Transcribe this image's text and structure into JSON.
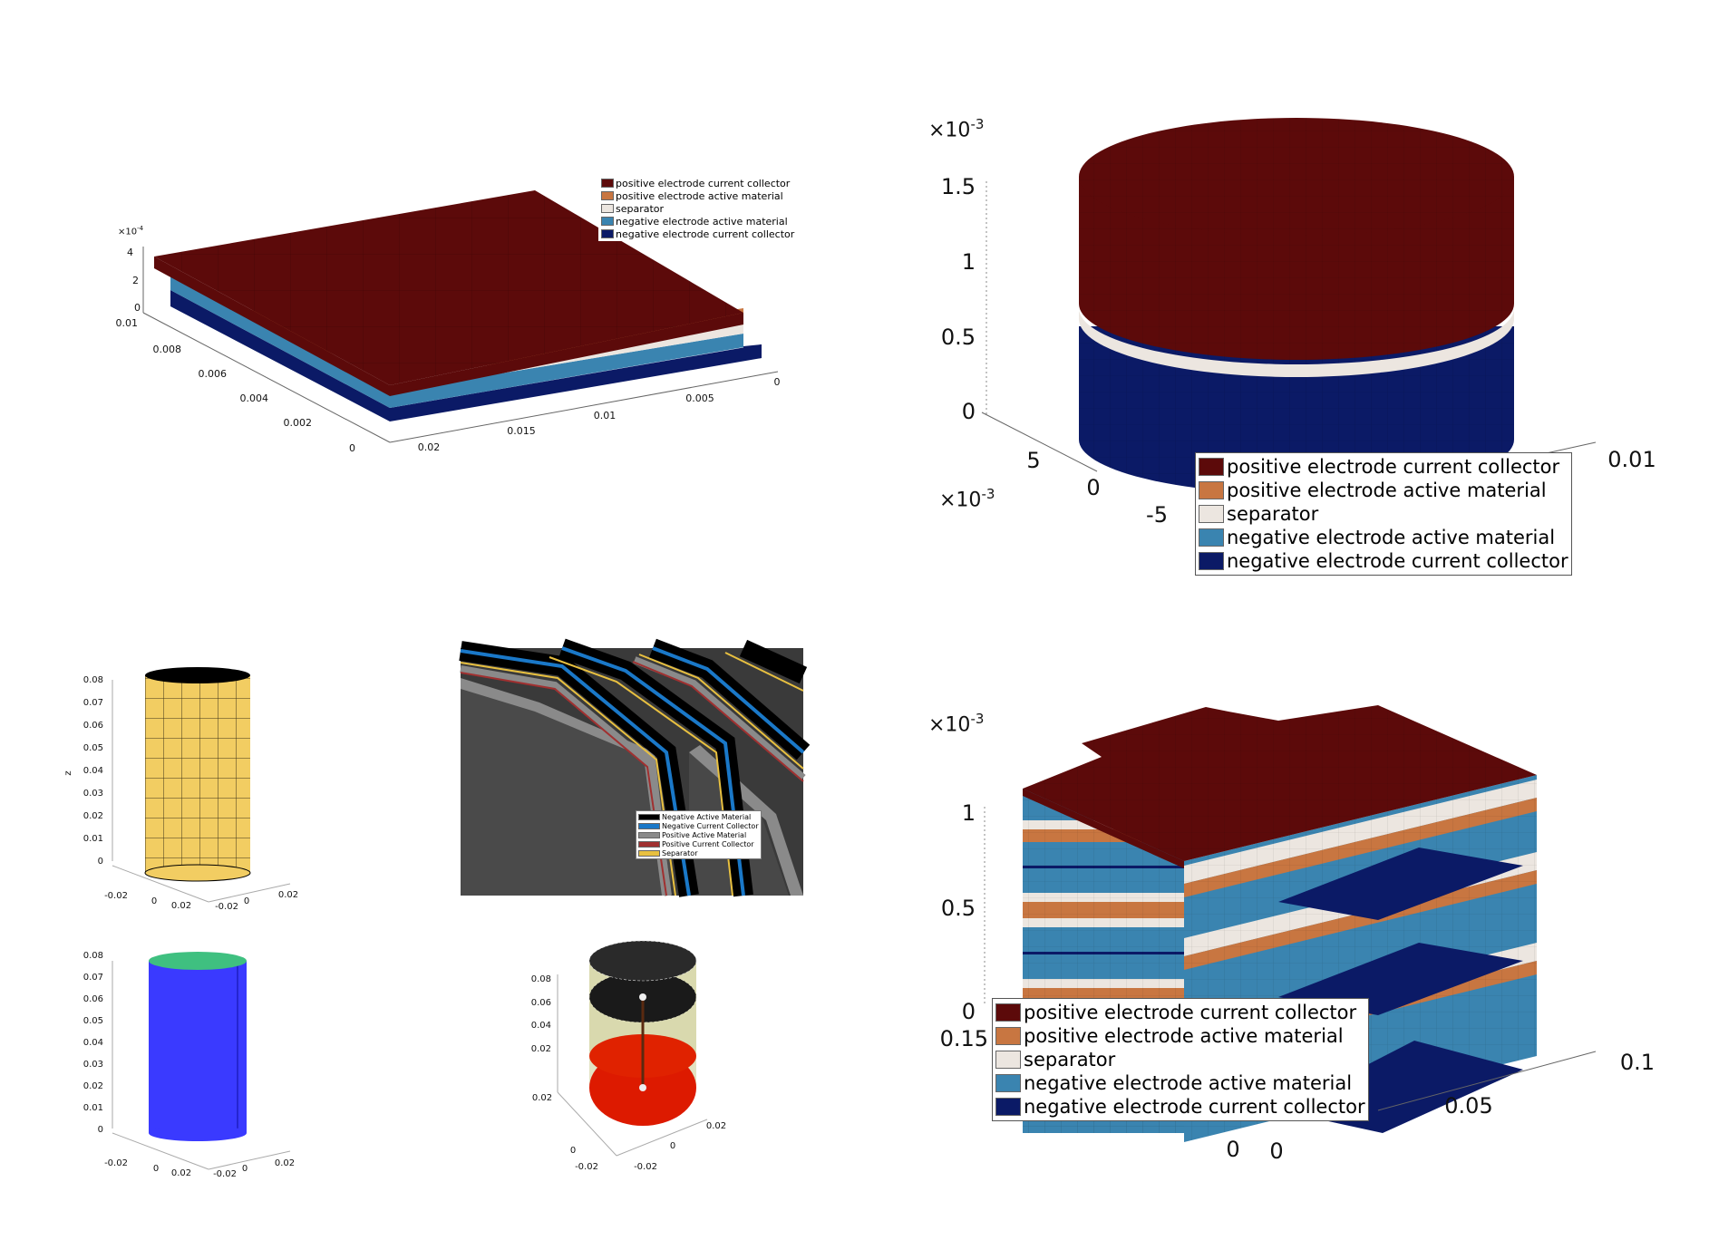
{
  "colors": {
    "pos_cc": "#5c0a0a",
    "pos_am": "#c87641",
    "separator": "#ece6e0",
    "neg_am": "#3a84b0",
    "neg_cc": "#0b1a66",
    "roll_neg_am": "#000000",
    "roll_neg_cc": "#1a78c8",
    "roll_pos_am": "#8a8a8a",
    "roll_pos_cc": "#a03030",
    "roll_separator": "#e8c040",
    "cyl_yellow": "#f2cd62",
    "cyl_blue": "#3a3aff",
    "cyl_green": "#3fc080",
    "cyl_red": "#dd1a00"
  },
  "legend_main": [
    {
      "label": "positive electrode current collector",
      "color": "#5c0a0a"
    },
    {
      "label": "positive electrode active material",
      "color": "#c87641"
    },
    {
      "label": "separator",
      "color": "#ece6e0"
    },
    {
      "label": "negative electrode active material",
      "color": "#3a84b0"
    },
    {
      "label": "negative electrode current collector",
      "color": "#0b1a66"
    }
  ],
  "legend_roll": [
    {
      "label": "Negative Active Material",
      "color": "#000000"
    },
    {
      "label": "Negative Current Collector",
      "color": "#1a78c8"
    },
    {
      "label": "Positive Active Material",
      "color": "#8a8a8a"
    },
    {
      "label": "Positive Current Collector",
      "color": "#a03030"
    },
    {
      "label": "Separator",
      "color": "#e8c040"
    }
  ],
  "panel_a": {
    "multiplier": "×10",
    "exponent": "-4",
    "z_ticks": [
      "4",
      "2",
      "0"
    ],
    "y_ticks": [
      "0.01",
      "0.008",
      "0.006",
      "0.004",
      "0.002",
      "0"
    ],
    "x_ticks": [
      "0.02",
      "0.015",
      "0.01",
      "0.005",
      "0"
    ]
  },
  "panel_b": {
    "z_multiplier": "×10",
    "z_exponent": "-3",
    "z_ticks": [
      "1.5",
      "1",
      "0.5",
      "0"
    ],
    "y_multiplier": "×10",
    "y_exponent": "-3",
    "y_ticks": [
      "5",
      "0",
      "-5"
    ],
    "x_ticks": [
      "0.01"
    ]
  },
  "panel_c": {
    "z_label": "z",
    "z_ticks": [
      "0.08",
      "0.07",
      "0.06",
      "0.05",
      "0.04",
      "0.03",
      "0.02",
      "0.01",
      "0"
    ],
    "bottom_ticks": [
      "-0.02",
      "0",
      "0.02",
      "-0.02",
      "0",
      "0.02"
    ]
  },
  "panel_d": {
    "z_ticks": [
      "0.08",
      "0.07",
      "0.06",
      "0.05",
      "0.04",
      "0.03",
      "0.02",
      "0.01",
      "0"
    ],
    "bottom_ticks": [
      "-0.02",
      "0",
      "0.02",
      "-0.02",
      "0",
      "0.02"
    ]
  },
  "panel_f": {
    "z_ticks": [
      "0.08",
      "0.06",
      "0.04",
      "0.02"
    ],
    "side_tick": "0.02",
    "bottom_ticks": [
      "-0.02",
      "0",
      "-0.02",
      "0",
      "0.02"
    ]
  },
  "panel_g": {
    "multiplier": "×10",
    "exponent": "-3",
    "z_ticks": [
      "1",
      "0.5",
      "0"
    ],
    "y_ticks": [
      "0.15",
      "0",
      "0"
    ],
    "x_ticks": [
      "0.05",
      "0.1"
    ]
  }
}
